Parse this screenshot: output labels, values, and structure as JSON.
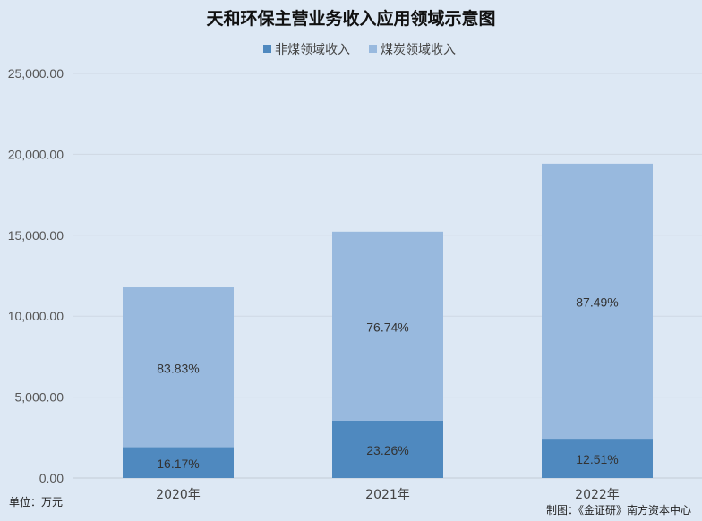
{
  "chart_data": {
    "type": "bar",
    "stacked": true,
    "title": "天和环保主营业务收入应用领域示意图",
    "categories": [
      "2020年",
      "2021年",
      "2022年"
    ],
    "series": [
      {
        "name": "非煤领域收入",
        "color": "#4f89bf",
        "values": [
          1905,
          3540,
          2430
        ],
        "labels": [
          "16.17%",
          "23.26%",
          "12.51%"
        ]
      },
      {
        "name": "煤炭领域收入",
        "color": "#98b9de",
        "values": [
          9875,
          11680,
          16990
        ],
        "labels": [
          "83.83%",
          "76.74%",
          "87.49%"
        ]
      }
    ],
    "y_ticks": [
      "0.00",
      "5,000.00",
      "10,000.00",
      "15,000.00",
      "20,000.00",
      "25,000.00"
    ],
    "ylim": [
      0,
      25000
    ],
    "grid": true,
    "legend_position": "top",
    "unit_note": "单位：万元",
    "source_note": "制图：《金证研》南方资本中心"
  }
}
